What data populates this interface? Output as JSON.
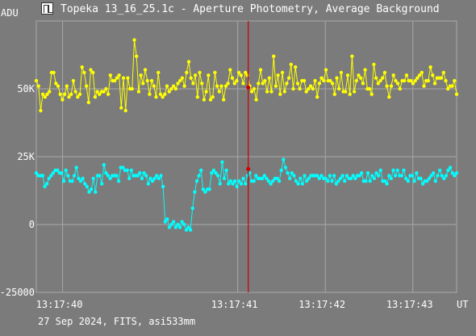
{
  "window": {
    "title": "Topeka 13_16_25.1c - Aperture Photometry, Average Background",
    "icon": "aperture-photometry-icon"
  },
  "footer": "27 Sep 2024, FITS, asi533mm",
  "colors": {
    "background": "#7b7b7b",
    "grid": "#a8a8a8",
    "series_1": "#ffff00",
    "series_2": "#00ffff",
    "cursor": "#cc0000"
  },
  "chart_data": {
    "type": "line",
    "ylabel": "ADU",
    "xlabel": "UT",
    "xlim": [
      0,
      48
    ],
    "ylim": [
      -25000,
      75000
    ],
    "yticks": [
      {
        "value": 50000,
        "label": "50K"
      },
      {
        "value": 25000,
        "label": "25K"
      },
      {
        "value": 0,
        "label": "0"
      },
      {
        "value": -25000,
        "label": "-25000"
      }
    ],
    "xticks": [
      {
        "value": 3,
        "label": "13:17:40"
      },
      {
        "value": 23,
        "label": "13:17:41"
      },
      {
        "value": 33,
        "label": "13:17:42"
      },
      {
        "value": 43,
        "label": "13:17:43"
      }
    ],
    "grid": true,
    "cursor": {
      "x": 24.2,
      "values": [
        50500,
        20500
      ]
    },
    "series": [
      {
        "color": "#ffff00",
        "values": [
          53000,
          51000,
          42000,
          48000,
          47000,
          48000,
          49000,
          56000,
          56000,
          52000,
          51000,
          48000,
          46000,
          48000,
          51000,
          47000,
          48000,
          53000,
          49000,
          47000,
          48000,
          58000,
          56000,
          51000,
          45000,
          57000,
          56000,
          47000,
          49000,
          48000,
          49000,
          49000,
          50000,
          48000,
          55000,
          53000,
          53000,
          54000,
          55000,
          43000,
          54000,
          42000,
          54000,
          50000,
          50000,
          68000,
          62000,
          49000,
          55000,
          52000,
          57000,
          53000,
          48000,
          53000,
          51000,
          47000,
          56000,
          48000,
          47000,
          48000,
          51000,
          49000,
          50000,
          51000,
          50000,
          52000,
          53000,
          54000,
          51000,
          56000,
          60000,
          54000,
          52000,
          55000,
          47000,
          56000,
          52000,
          46000,
          49000,
          55000,
          46000,
          47000,
          56000,
          51000,
          49000,
          51000,
          46000,
          51000,
          52000,
          57000,
          54000,
          52000,
          53000,
          56000,
          55000,
          52000,
          56000,
          55000,
          51000,
          49000,
          50000,
          46000,
          52000,
          57000,
          52000,
          53000,
          49000,
          54000,
          49000,
          62000,
          51000,
          55000,
          48000,
          56000,
          49000,
          52000,
          54000,
          59000,
          50000,
          58000,
          52000,
          50000,
          53000,
          53000,
          49000,
          50000,
          51000,
          50000,
          53000,
          47000,
          52000,
          54000,
          53000,
          57000,
          53000,
          53000,
          52000,
          48000,
          54000,
          50000,
          56000,
          49000,
          49000,
          55000,
          48000,
          62000,
          49000,
          53000,
          55000,
          54000,
          52000,
          57000,
          50000,
          50000,
          48000,
          59000,
          54000,
          52000,
          53000,
          54000,
          56000,
          51000,
          47000,
          51000,
          55000,
          53000,
          52000,
          50000,
          53000,
          53000,
          55000,
          53000,
          53000,
          52000,
          53000,
          54000,
          55000,
          56000,
          51000,
          53000,
          53000,
          58000,
          55000,
          52000,
          54000,
          54000,
          54000,
          56000,
          53000,
          50000,
          51000,
          51000,
          53000,
          48000
        ]
      },
      {
        "color": "#00ffff",
        "values": [
          19000,
          18000,
          18000,
          18000,
          14000,
          15000,
          17000,
          18000,
          19000,
          20000,
          20000,
          19000,
          19000,
          16000,
          20000,
          18000,
          16000,
          16000,
          18000,
          21000,
          17000,
          16000,
          17000,
          15000,
          14000,
          12000,
          13000,
          17000,
          12000,
          18000,
          18000,
          15000,
          22000,
          19000,
          18000,
          17000,
          18000,
          18000,
          18000,
          16000,
          21000,
          21000,
          20000,
          20000,
          17000,
          20000,
          18000,
          18000,
          18000,
          19000,
          17000,
          19000,
          18000,
          15000,
          17000,
          16000,
          17000,
          18000,
          17000,
          18000,
          14000,
          1000,
          2000,
          -1000,
          0,
          1000,
          -1000,
          0,
          -1000,
          1000,
          0,
          -2000,
          -1000,
          -2000,
          6000,
          12000,
          16000,
          18000,
          20000,
          13000,
          12000,
          13000,
          13000,
          19000,
          20000,
          19000,
          18000,
          15000,
          23000,
          17000,
          20000,
          15000,
          16000,
          15000,
          16000,
          14000,
          16000,
          15000,
          17000,
          15000,
          18000,
          19000,
          16000,
          16000,
          18000,
          17000,
          17000,
          17000,
          18000,
          17000,
          16000,
          15000,
          16000,
          17000,
          17000,
          16000,
          20000,
          24000,
          21000,
          19000,
          17000,
          19000,
          18000,
          16000,
          15000,
          17000,
          15000,
          18000,
          16000,
          17000,
          18000,
          18000,
          18000,
          18000,
          17000,
          18000,
          17000,
          17000,
          16000,
          18000,
          16000,
          18000,
          15000,
          16000,
          17000,
          18000,
          16000,
          18000,
          17000,
          17000,
          18000,
          17000,
          18000,
          18000,
          19000,
          16000,
          16000,
          19000,
          16000,
          18000,
          17000,
          19000,
          18000,
          20000,
          16000,
          16000,
          15000,
          18000,
          17000,
          20000,
          18000,
          20000,
          18000,
          18000,
          20000,
          17000,
          16000,
          18000,
          18000,
          16000,
          19000,
          17000,
          17000,
          15000,
          16000,
          16000,
          17000,
          18000,
          19000,
          16000,
          18000,
          20000,
          18000,
          17000,
          18000,
          20000,
          21000,
          19000,
          18000,
          19000
        ]
      }
    ]
  }
}
